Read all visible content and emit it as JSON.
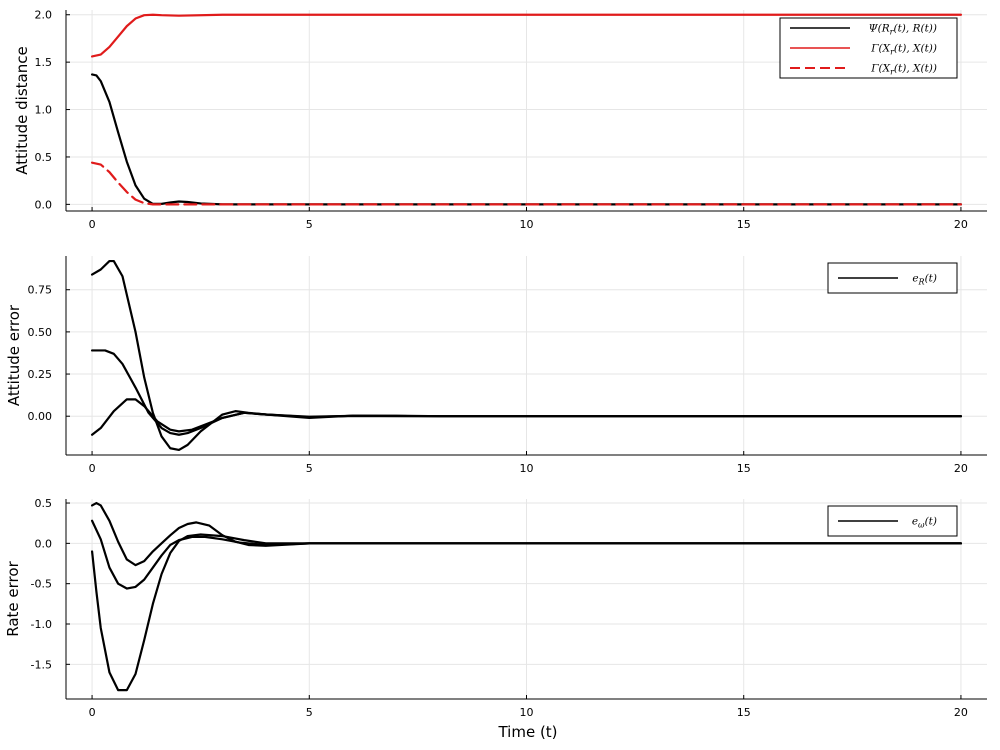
{
  "figure": {
    "xlabel": "Time (t)"
  },
  "chart_data": [
    {
      "type": "line",
      "ylabel": "Attitude distance",
      "xlim": [
        -0.6,
        20.6
      ],
      "ylim": [
        -0.07,
        2.05
      ],
      "xticks": [
        0,
        5,
        10,
        15,
        20
      ],
      "yticks": [
        0.0,
        0.5,
        1.0,
        1.5,
        2.0
      ],
      "ytick_labels": [
        "0.0",
        "0.5",
        "1.0",
        "1.5",
        "2.0"
      ],
      "grid": true,
      "legend": "top-right",
      "legend_entries": [
        {
          "label": "Ψ(R_r(t), R(t))",
          "color": "#000000",
          "dash": "solid"
        },
        {
          "label": "Γ(X_r(t), X(t))",
          "color": "#e01b1b",
          "dash": "solid"
        },
        {
          "label": "Γ(X_r(t), X(t))",
          "color": "#e01b1b",
          "dash": "dashed"
        }
      ],
      "series": [
        {
          "color": "#e01b1b",
          "dash": "solid",
          "x": [
            0,
            0.2,
            0.4,
            0.6,
            0.8,
            1.0,
            1.2,
            1.4,
            1.6,
            2.0,
            3.0,
            5.0,
            10.0,
            15.0,
            20.0
          ],
          "y": [
            1.56,
            1.58,
            1.66,
            1.77,
            1.88,
            1.96,
            1.995,
            2.0,
            1.995,
            1.99,
            2.0,
            2.0,
            2.0,
            2.0,
            2.0
          ]
        },
        {
          "color": "#000000",
          "dash": "solid",
          "x": [
            0,
            0.1,
            0.2,
            0.4,
            0.6,
            0.8,
            1.0,
            1.2,
            1.4,
            1.6,
            1.8,
            2.0,
            2.2,
            2.5,
            3.0,
            4.0,
            5.0,
            10.0,
            15.0,
            20.0
          ],
          "y": [
            1.37,
            1.36,
            1.3,
            1.08,
            0.76,
            0.45,
            0.2,
            0.06,
            0.005,
            0.005,
            0.02,
            0.03,
            0.025,
            0.01,
            0.0,
            0.0,
            0.0,
            0.0,
            0.0,
            0.0
          ]
        },
        {
          "color": "#e01b1b",
          "dash": "dashed",
          "x": [
            0,
            0.2,
            0.4,
            0.6,
            0.8,
            1.0,
            1.2,
            1.4,
            1.6,
            2.0,
            3.0,
            5.0,
            10.0,
            15.0,
            20.0
          ],
          "y": [
            0.44,
            0.42,
            0.34,
            0.23,
            0.13,
            0.05,
            0.012,
            0.0,
            0.0,
            0.0,
            0.0,
            0.0,
            0.0,
            0.0,
            0.0
          ]
        }
      ]
    },
    {
      "type": "line",
      "ylabel": "Attitude error",
      "xlim": [
        -0.6,
        20.6
      ],
      "ylim": [
        -0.23,
        0.95
      ],
      "xticks": [
        0,
        5,
        10,
        15,
        20
      ],
      "yticks": [
        0.0,
        0.25,
        0.5,
        0.75
      ],
      "ytick_labels": [
        "0.00",
        "0.25",
        "0.50",
        "0.75"
      ],
      "grid": true,
      "legend": "top-right",
      "legend_entries": [
        {
          "label": "e_R(t)",
          "color": "#000000",
          "dash": "solid"
        }
      ],
      "series": [
        {
          "color": "#000000",
          "dash": "solid",
          "x": [
            0,
            0.2,
            0.4,
            0.5,
            0.7,
            1.0,
            1.2,
            1.4,
            1.6,
            1.8,
            2.0,
            2.2,
            2.5,
            3.0,
            3.3,
            3.6,
            4.0,
            5.0,
            6.0,
            7.0,
            8.0,
            10.0,
            15.0,
            20.0
          ],
          "y": [
            0.84,
            0.87,
            0.92,
            0.92,
            0.83,
            0.5,
            0.23,
            0.02,
            -0.12,
            -0.19,
            -0.2,
            -0.17,
            -0.09,
            0.01,
            0.03,
            0.02,
            0.01,
            -0.01,
            0.003,
            0.003,
            0.0,
            0.0,
            0.0,
            0.0
          ]
        },
        {
          "color": "#000000",
          "dash": "solid",
          "x": [
            0,
            0.3,
            0.5,
            0.7,
            1.0,
            1.3,
            1.6,
            1.8,
            2.0,
            2.2,
            2.5,
            3.0,
            3.5,
            4.0,
            5.0,
            6.0,
            8.0,
            10.0,
            15.0,
            20.0
          ],
          "y": [
            0.39,
            0.39,
            0.37,
            0.31,
            0.17,
            0.02,
            -0.07,
            -0.1,
            -0.11,
            -0.1,
            -0.07,
            -0.01,
            0.02,
            0.01,
            -0.005,
            0.002,
            0.0,
            0.0,
            0.0,
            0.0
          ]
        },
        {
          "color": "#000000",
          "dash": "solid",
          "x": [
            0,
            0.2,
            0.5,
            0.8,
            1.0,
            1.2,
            1.5,
            1.8,
            2.0,
            2.3,
            2.6,
            3.0,
            3.5,
            4.0,
            5.0,
            6.0,
            8.0,
            10.0,
            15.0,
            20.0
          ],
          "y": [
            -0.11,
            -0.07,
            0.03,
            0.1,
            0.1,
            0.06,
            -0.03,
            -0.08,
            -0.09,
            -0.08,
            -0.05,
            -0.01,
            0.02,
            0.01,
            -0.003,
            0.002,
            0.0,
            0.0,
            0.0,
            0.0
          ]
        }
      ]
    },
    {
      "type": "line",
      "ylabel": "Rate error",
      "xlim": [
        -0.6,
        20.6
      ],
      "ylim": [
        -1.93,
        0.55
      ],
      "xticks": [
        0,
        5,
        10,
        15,
        20
      ],
      "xtick_labels": [
        "0",
        "5",
        "10",
        "15",
        "20"
      ],
      "yticks": [
        -1.5,
        -1.0,
        -0.5,
        0.0,
        0.5
      ],
      "ytick_labels": [
        "-1.5",
        "-1.0",
        "-0.5",
        "0.0",
        "0.5"
      ],
      "grid": true,
      "legend": "top-right",
      "legend_entries": [
        {
          "label": "e_ω(t)",
          "color": "#000000",
          "dash": "solid"
        }
      ],
      "series": [
        {
          "color": "#000000",
          "dash": "solid",
          "x": [
            0,
            0.1,
            0.2,
            0.4,
            0.6,
            0.8,
            1.0,
            1.2,
            1.4,
            1.6,
            1.8,
            2.0,
            2.2,
            2.4,
            2.7,
            3.0,
            3.3,
            3.6,
            4.0,
            5.0,
            6.0,
            8.0,
            10.0,
            15.0,
            20.0
          ],
          "y": [
            0.47,
            0.5,
            0.47,
            0.28,
            0.02,
            -0.2,
            -0.27,
            -0.22,
            -0.1,
            0.0,
            0.1,
            0.19,
            0.24,
            0.26,
            0.22,
            0.1,
            0.02,
            -0.02,
            -0.03,
            0.0,
            0.0,
            0.0,
            0.0,
            0.0,
            0.0
          ]
        },
        {
          "color": "#000000",
          "dash": "solid",
          "x": [
            0,
            0.2,
            0.4,
            0.6,
            0.8,
            1.0,
            1.2,
            1.4,
            1.6,
            1.8,
            2.0,
            2.3,
            2.6,
            3.0,
            3.4,
            4.0,
            5.0,
            6.0,
            8.0,
            10.0,
            15.0,
            20.0
          ],
          "y": [
            0.28,
            0.05,
            -0.3,
            -0.5,
            -0.56,
            -0.54,
            -0.45,
            -0.3,
            -0.15,
            -0.02,
            0.04,
            0.08,
            0.08,
            0.05,
            0.01,
            -0.02,
            0.0,
            0.0,
            0.0,
            0.0,
            0.0,
            0.0
          ]
        },
        {
          "color": "#000000",
          "dash": "solid",
          "x": [
            0,
            0.1,
            0.2,
            0.4,
            0.6,
            0.8,
            1.0,
            1.2,
            1.4,
            1.6,
            1.8,
            2.0,
            2.2,
            2.5,
            3.0,
            3.5,
            4.0,
            5.0,
            6.0,
            8.0,
            10.0,
            15.0,
            20.0
          ],
          "y": [
            -0.1,
            -0.6,
            -1.05,
            -1.6,
            -1.82,
            -1.82,
            -1.62,
            -1.2,
            -0.75,
            -0.38,
            -0.12,
            0.03,
            0.09,
            0.11,
            0.09,
            0.04,
            0.0,
            0.0,
            0.0,
            0.0,
            0.0,
            0.0,
            0.0
          ]
        }
      ]
    }
  ]
}
